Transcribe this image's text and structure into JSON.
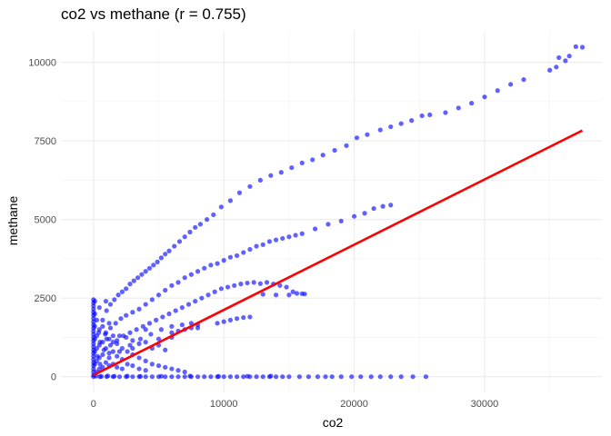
{
  "chart_data": {
    "type": "scatter",
    "title": "co2 vs methane (r = 0.755)",
    "xlabel": "co2",
    "ylabel": "methane",
    "xlim": [
      -2500,
      39000
    ],
    "ylim": [
      -500,
      11000
    ],
    "x_ticks": [
      0,
      10000,
      20000,
      30000
    ],
    "x_tick_labels": [
      "0",
      "10000",
      "20000",
      "30000"
    ],
    "y_ticks": [
      0,
      2500,
      5000,
      7500,
      10000
    ],
    "y_tick_labels": [
      "0",
      "2500",
      "5000",
      "7500",
      "10000"
    ],
    "grid": true,
    "legend": "none",
    "point_color": "#0000FF",
    "line_color": "#FF0000",
    "regression_line": {
      "x": [
        0,
        37500
      ],
      "y": [
        50,
        7830
      ]
    },
    "series": [
      {
        "values": [
          [
            0,
            2450
          ],
          [
            0,
            2350
          ],
          [
            0,
            2250
          ],
          [
            0,
            2150
          ],
          [
            0,
            2050
          ],
          [
            0,
            1950
          ],
          [
            0,
            1850
          ],
          [
            0,
            1750
          ],
          [
            0,
            1650
          ],
          [
            0,
            1550
          ],
          [
            0,
            1450
          ],
          [
            0,
            1350
          ],
          [
            0,
            1250
          ],
          [
            0,
            1150
          ],
          [
            0,
            1050
          ],
          [
            0,
            950
          ],
          [
            0,
            850
          ],
          [
            0,
            750
          ],
          [
            0,
            650
          ],
          [
            0,
            550
          ],
          [
            0,
            450
          ],
          [
            0,
            350
          ],
          [
            0,
            250
          ],
          [
            0,
            150
          ],
          [
            0,
            50
          ],
          [
            100,
            2400
          ],
          [
            100,
            2000
          ],
          [
            100,
            1600
          ],
          [
            100,
            1200
          ],
          [
            100,
            800
          ],
          [
            100,
            400
          ],
          [
            250,
            1800
          ],
          [
            250,
            1300
          ],
          [
            250,
            900
          ],
          [
            250,
            500
          ],
          [
            250,
            150
          ],
          [
            450,
            2200
          ],
          [
            450,
            1500
          ],
          [
            450,
            1000
          ],
          [
            450,
            600
          ],
          [
            450,
            250
          ],
          [
            700,
            1600
          ],
          [
            700,
            1100
          ],
          [
            700,
            700
          ],
          [
            700,
            300
          ],
          [
            950,
            2400
          ],
          [
            950,
            1400
          ],
          [
            950,
            900
          ],
          [
            950,
            450
          ],
          [
            1200,
            1700
          ],
          [
            1200,
            1200
          ],
          [
            1200,
            750
          ],
          [
            1200,
            350
          ],
          [
            1500,
            1300
          ],
          [
            1500,
            800
          ],
          [
            1500,
            400
          ],
          [
            1800,
            1050
          ],
          [
            1800,
            650
          ],
          [
            1800,
            300
          ],
          [
            2200,
            900
          ],
          [
            2200,
            550
          ],
          [
            2200,
            250
          ],
          [
            2600,
            800
          ],
          [
            2600,
            400
          ],
          [
            3000,
            700
          ],
          [
            3000,
            350
          ],
          [
            3500,
            600
          ],
          [
            3500,
            250
          ],
          [
            4000,
            500
          ],
          [
            4000,
            200
          ],
          [
            4500,
            400
          ],
          [
            5000,
            350
          ],
          [
            5500,
            300
          ],
          [
            6000,
            250
          ],
          [
            6500,
            200
          ],
          [
            7000,
            150
          ],
          [
            400,
            1400
          ],
          [
            700,
            1800
          ],
          [
            1000,
            2100
          ],
          [
            1300,
            2300
          ],
          [
            1600,
            2450
          ],
          [
            1900,
            2600
          ],
          [
            2200,
            2700
          ],
          [
            2500,
            2800
          ],
          [
            2800,
            2950
          ],
          [
            3100,
            3050
          ],
          [
            3400,
            3150
          ],
          [
            3700,
            3250
          ],
          [
            4000,
            3350
          ],
          [
            4300,
            3450
          ],
          [
            4600,
            3550
          ],
          [
            4900,
            3650
          ],
          [
            5200,
            3780
          ],
          [
            5500,
            3900
          ],
          [
            5800,
            4000
          ],
          [
            6200,
            4150
          ],
          [
            6600,
            4300
          ],
          [
            7000,
            4450
          ],
          [
            7400,
            4600
          ],
          [
            7800,
            4750
          ],
          [
            8200,
            4850
          ],
          [
            8700,
            5000
          ],
          [
            9200,
            5150
          ],
          [
            9800,
            5400
          ],
          [
            10500,
            5600
          ],
          [
            11200,
            5850
          ],
          [
            12000,
            6050
          ],
          [
            12800,
            6250
          ],
          [
            13600,
            6400
          ],
          [
            14400,
            6500
          ],
          [
            15200,
            6650
          ],
          [
            16000,
            6800
          ],
          [
            16800,
            6900
          ],
          [
            17600,
            7050
          ],
          [
            18500,
            7200
          ],
          [
            19400,
            7350
          ],
          [
            20200,
            7600
          ],
          [
            21000,
            7700
          ],
          [
            22000,
            7850
          ],
          [
            22800,
            7950
          ],
          [
            23600,
            8050
          ],
          [
            24400,
            8150
          ],
          [
            25200,
            8300
          ],
          [
            25800,
            8330
          ],
          [
            27000,
            8400
          ],
          [
            28000,
            8550
          ],
          [
            29000,
            8700
          ],
          [
            30000,
            8900
          ],
          [
            31000,
            9100
          ],
          [
            32000,
            9300
          ],
          [
            33000,
            9450
          ],
          [
            35000,
            9750
          ],
          [
            35500,
            9850
          ],
          [
            35700,
            10150
          ],
          [
            36200,
            10050
          ],
          [
            36500,
            10200
          ],
          [
            37000,
            10500
          ],
          [
            37500,
            10480
          ],
          [
            500,
            1100
          ],
          [
            900,
            1350
          ],
          [
            1300,
            1550
          ],
          [
            1700,
            1700
          ],
          [
            2100,
            1850
          ],
          [
            2500,
            1950
          ],
          [
            3000,
            2050
          ],
          [
            3500,
            2150
          ],
          [
            4000,
            2300
          ],
          [
            4500,
            2450
          ],
          [
            5000,
            2600
          ],
          [
            5500,
            2750
          ],
          [
            6000,
            2900
          ],
          [
            6500,
            3000
          ],
          [
            7000,
            3150
          ],
          [
            7500,
            3250
          ],
          [
            8000,
            3350
          ],
          [
            8500,
            3450
          ],
          [
            9000,
            3550
          ],
          [
            9500,
            3600
          ],
          [
            10000,
            3700
          ],
          [
            10500,
            3800
          ],
          [
            11000,
            3850
          ],
          [
            11500,
            3950
          ],
          [
            12000,
            4050
          ],
          [
            12500,
            4150
          ],
          [
            13000,
            4200
          ],
          [
            13500,
            4300
          ],
          [
            14000,
            4350
          ],
          [
            14500,
            4400
          ],
          [
            15000,
            4450
          ],
          [
            15500,
            4500
          ],
          [
            16000,
            4550
          ],
          [
            17000,
            4700
          ],
          [
            18000,
            4850
          ],
          [
            19000,
            4950
          ],
          [
            20000,
            5100
          ],
          [
            20800,
            5200
          ],
          [
            21500,
            5350
          ],
          [
            22200,
            5420
          ],
          [
            22800,
            5460
          ],
          [
            300,
            650
          ],
          [
            800,
            850
          ],
          [
            1300,
            1000
          ],
          [
            1800,
            1150
          ],
          [
            2300,
            1300
          ],
          [
            2800,
            1400
          ],
          [
            3300,
            1500
          ],
          [
            3800,
            1600
          ],
          [
            4300,
            1700
          ],
          [
            4800,
            1800
          ],
          [
            5300,
            1900
          ],
          [
            5800,
            2000
          ],
          [
            6300,
            2100
          ],
          [
            6800,
            2200
          ],
          [
            7300,
            2300
          ],
          [
            7800,
            2400
          ],
          [
            8300,
            2500
          ],
          [
            8800,
            2600
          ],
          [
            9300,
            2700
          ],
          [
            9800,
            2800
          ],
          [
            10300,
            2850
          ],
          [
            10800,
            2900
          ],
          [
            11300,
            2950
          ],
          [
            11800,
            2980
          ],
          [
            12300,
            3000
          ],
          [
            12800,
            2960
          ],
          [
            13300,
            3000
          ],
          [
            13800,
            2950
          ],
          [
            14300,
            2900
          ],
          [
            14800,
            2850
          ],
          [
            15300,
            2700
          ],
          [
            15600,
            2650
          ],
          [
            16000,
            2640
          ],
          [
            16200,
            2630
          ],
          [
            15000,
            2600
          ],
          [
            14000,
            2600
          ],
          [
            13000,
            2620
          ],
          [
            500,
            400
          ],
          [
            1200,
            600
          ],
          [
            2000,
            800
          ],
          [
            2800,
            1000
          ],
          [
            3600,
            1200
          ],
          [
            4400,
            1350
          ],
          [
            5200,
            1500
          ],
          [
            6000,
            1600
          ],
          [
            6800,
            1650
          ],
          [
            7500,
            1700
          ],
          [
            8000,
            1650
          ],
          [
            10000,
            1750
          ],
          [
            10500,
            1800
          ],
          [
            9500,
            1700
          ],
          [
            11000,
            1850
          ],
          [
            11500,
            1880
          ],
          [
            12000,
            1900
          ],
          [
            1000,
            1200
          ],
          [
            1500,
            1100
          ],
          [
            2000,
            1300
          ],
          [
            2500,
            1250
          ],
          [
            3000,
            1150
          ],
          [
            3500,
            1050
          ],
          [
            4000,
            1100
          ],
          [
            4500,
            900
          ],
          [
            5000,
            1000
          ],
          [
            5500,
            850
          ],
          [
            6000,
            1400
          ],
          [
            6500,
            1450
          ],
          [
            7000,
            1500
          ],
          [
            7500,
            1550
          ],
          [
            8000,
            1550
          ],
          [
            3000,
            900
          ],
          [
            4000,
            1500
          ],
          [
            5000,
            1200
          ],
          [
            6000,
            1250
          ],
          [
            0,
            0
          ],
          [
            500,
            0
          ],
          [
            1000,
            0
          ],
          [
            1500,
            0
          ],
          [
            2000,
            0
          ],
          [
            2500,
            0
          ],
          [
            3000,
            0
          ],
          [
            3500,
            0
          ],
          [
            4000,
            0
          ],
          [
            4500,
            0
          ],
          [
            5000,
            0
          ],
          [
            5500,
            0
          ],
          [
            6000,
            0
          ],
          [
            6500,
            0
          ],
          [
            7000,
            0
          ],
          [
            7500,
            0
          ],
          [
            8000,
            0
          ],
          [
            8500,
            0
          ],
          [
            9000,
            0
          ],
          [
            9500,
            0
          ],
          [
            10000,
            0
          ],
          [
            10500,
            0
          ],
          [
            11000,
            0
          ],
          [
            11500,
            0
          ],
          [
            12000,
            0
          ],
          [
            12500,
            0
          ],
          [
            13000,
            0
          ],
          [
            13500,
            0
          ],
          [
            14000,
            0
          ],
          [
            14500,
            0
          ],
          [
            15000,
            0
          ],
          [
            15800,
            0
          ],
          [
            16500,
            0
          ],
          [
            17200,
            0
          ],
          [
            17800,
            0
          ],
          [
            18300,
            0
          ],
          [
            19000,
            0
          ],
          [
            19800,
            0
          ],
          [
            20500,
            0
          ],
          [
            21300,
            0
          ],
          [
            22000,
            0
          ],
          [
            22800,
            0
          ],
          [
            23600,
            0
          ],
          [
            24500,
            0
          ],
          [
            25500,
            0
          ],
          [
            200,
            20
          ],
          [
            600,
            10
          ],
          [
            1100,
            25
          ],
          [
            1600,
            15
          ],
          [
            2600,
            20
          ],
          [
            3600,
            10
          ],
          [
            5200,
            15
          ],
          [
            7400,
            20
          ],
          [
            9600,
            10
          ],
          [
            11800,
            15
          ],
          [
            13600,
            20
          ]
        ]
      }
    ]
  }
}
